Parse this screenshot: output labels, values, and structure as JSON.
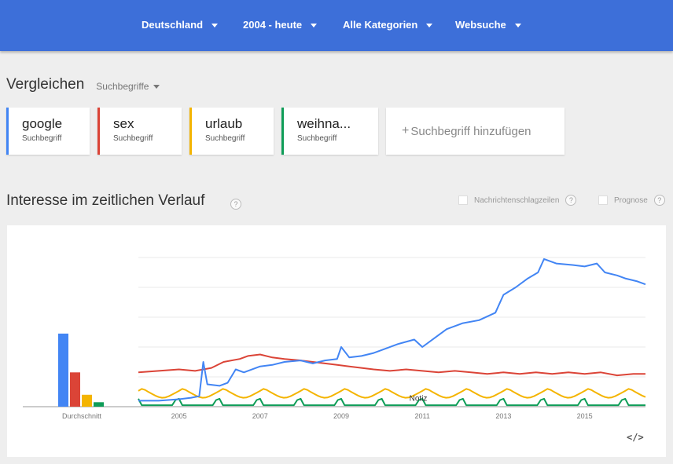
{
  "filters": {
    "region": "Deutschland",
    "period": "2004 - heute",
    "category": "Alle Kategorien",
    "search_type": "Websuche"
  },
  "compare": {
    "title": "Vergleichen",
    "mode": "Suchbegriffe"
  },
  "terms": [
    {
      "label": "google",
      "sub": "Suchbegriff",
      "color": "#4285f4"
    },
    {
      "label": "sex",
      "sub": "Suchbegriff",
      "color": "#db4437"
    },
    {
      "label": "urlaub",
      "sub": "Suchbegriff",
      "color": "#f4b400"
    },
    {
      "label": "weihna...",
      "sub": "Suchbegriff",
      "color": "#0f9d58"
    }
  ],
  "add_term": {
    "plus": "+",
    "label": "Suchbegriff hinzufügen"
  },
  "interest": {
    "title": "Interesse im zeitlichen Verlauf",
    "help": "?",
    "news_label": "Nachrichtenschlagzeilen",
    "forecast_label": "Prognose"
  },
  "embed_icon": "</>",
  "chart_data": {
    "type": "line",
    "x_range": [
      2004,
      2016.5
    ],
    "y_range": [
      0,
      100
    ],
    "grid": true,
    "xticks": [
      "2005",
      "2007",
      "2009",
      "2011",
      "2013",
      "2015"
    ],
    "xtick_values": [
      2005,
      2007,
      2009,
      2011,
      2013,
      2015
    ],
    "average_label": "Durchschnitt",
    "averages": [
      {
        "term": "google",
        "value": 49,
        "color": "#4285f4"
      },
      {
        "term": "sex",
        "value": 23,
        "color": "#db4437"
      },
      {
        "term": "urlaub",
        "value": 8,
        "color": "#f4b400"
      },
      {
        "term": "weihnachten",
        "value": 3,
        "color": "#0f9d58"
      }
    ],
    "note_label": "Notiz",
    "note_year": 2010.9,
    "series": [
      {
        "name": "google",
        "color": "#4285f4",
        "points": [
          [
            2004,
            4
          ],
          [
            2004.5,
            4
          ],
          [
            2005,
            5
          ],
          [
            2005.3,
            6
          ],
          [
            2005.5,
            7
          ],
          [
            2005.6,
            30
          ],
          [
            2005.7,
            15
          ],
          [
            2006,
            14
          ],
          [
            2006.2,
            16
          ],
          [
            2006.4,
            25
          ],
          [
            2006.6,
            23
          ],
          [
            2007,
            27
          ],
          [
            2007.3,
            28
          ],
          [
            2007.6,
            30
          ],
          [
            2008,
            31
          ],
          [
            2008.3,
            29
          ],
          [
            2008.6,
            31
          ],
          [
            2008.9,
            32
          ],
          [
            2009,
            40
          ],
          [
            2009.2,
            33
          ],
          [
            2009.5,
            34
          ],
          [
            2009.8,
            36
          ],
          [
            2010,
            38
          ],
          [
            2010.4,
            42
          ],
          [
            2010.8,
            45
          ],
          [
            2011,
            40
          ],
          [
            2011.3,
            46
          ],
          [
            2011.6,
            52
          ],
          [
            2012,
            56
          ],
          [
            2012.4,
            58
          ],
          [
            2012.8,
            63
          ],
          [
            2013,
            75
          ],
          [
            2013.3,
            80
          ],
          [
            2013.6,
            86
          ],
          [
            2013.85,
            90
          ],
          [
            2014,
            99
          ],
          [
            2014.3,
            96
          ],
          [
            2014.7,
            95
          ],
          [
            2015,
            94
          ],
          [
            2015.3,
            96
          ],
          [
            2015.5,
            90
          ],
          [
            2015.8,
            88
          ],
          [
            2016,
            86
          ],
          [
            2016.3,
            84
          ],
          [
            2016.5,
            82
          ]
        ]
      },
      {
        "name": "sex",
        "color": "#db4437",
        "points": [
          [
            2004,
            23
          ],
          [
            2004.5,
            24
          ],
          [
            2005,
            25
          ],
          [
            2005.4,
            24
          ],
          [
            2005.8,
            26
          ],
          [
            2006.1,
            30
          ],
          [
            2006.5,
            32
          ],
          [
            2006.7,
            34
          ],
          [
            2007,
            35
          ],
          [
            2007.3,
            33
          ],
          [
            2007.6,
            32
          ],
          [
            2008,
            31
          ],
          [
            2008.3,
            30
          ],
          [
            2008.6,
            29
          ],
          [
            2008.9,
            28
          ],
          [
            2009.2,
            27
          ],
          [
            2009.5,
            26
          ],
          [
            2009.8,
            25
          ],
          [
            2010.2,
            24
          ],
          [
            2010.6,
            25
          ],
          [
            2011,
            24
          ],
          [
            2011.4,
            23
          ],
          [
            2011.8,
            24
          ],
          [
            2012.2,
            23
          ],
          [
            2012.6,
            22
          ],
          [
            2013,
            23
          ],
          [
            2013.4,
            22
          ],
          [
            2013.8,
            23
          ],
          [
            2014.2,
            22
          ],
          [
            2014.6,
            23
          ],
          [
            2015,
            22
          ],
          [
            2015.4,
            23
          ],
          [
            2015.8,
            21
          ],
          [
            2016.2,
            22
          ],
          [
            2016.5,
            22
          ]
        ]
      },
      {
        "name": "urlaub",
        "color": "#f4b400",
        "seasonal": {
          "base": 6,
          "amp": 6,
          "peak_phase": 0.1,
          "start": 2004,
          "end": 2016.5
        }
      },
      {
        "name": "weihnachten",
        "color": "#0f9d58",
        "seasonal": {
          "base": 1,
          "amp": 16,
          "peak_phase": 0.96,
          "start": 2004,
          "end": 2016.5,
          "spike": true
        }
      }
    ]
  }
}
